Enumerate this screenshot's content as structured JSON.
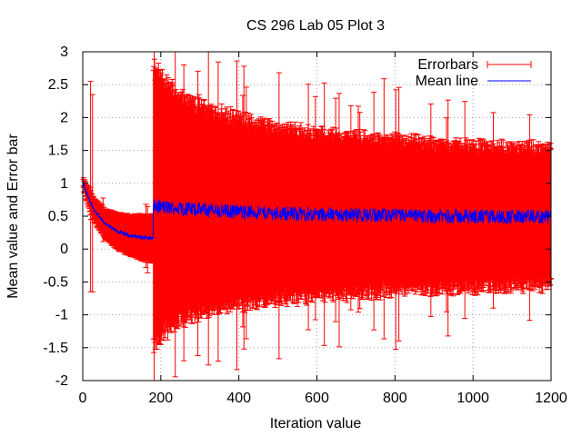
{
  "chart_data": {
    "type": "errorbar-line",
    "title": "CS 296 Lab 05 Plot 3",
    "xlabel": "Iteration value",
    "ylabel": "Mean value and Error bar",
    "xlim": [
      0,
      1200
    ],
    "ylim": [
      -2,
      3
    ],
    "x_ticks": [
      "0",
      "200",
      "400",
      "600",
      "800",
      "1000",
      "1200"
    ],
    "y_ticks": [
      "-2",
      "-1.5",
      "-1",
      "-0.5",
      "0",
      "0.5",
      "1",
      "1.5",
      "2",
      "2.5",
      "3"
    ],
    "grid": true,
    "legend_position": "top-right",
    "series": [
      {
        "name": "Errorbars",
        "kind": "errorbars",
        "color": "#ff0000",
        "segments": [
          {
            "x_start": 1,
            "x_end": 180,
            "mean_start": 1.0,
            "mean_end": 0.15,
            "half_width_start": 0.05,
            "half_width_end": 0.35
          },
          {
            "x_start": 181,
            "x_end": 1200,
            "mean_start": 0.65,
            "mean_end": 0.48,
            "half_width_start": 2.1,
            "half_width_end": 0.6
          }
        ],
        "sample_points": [
          {
            "x": 20,
            "mean": 0.95,
            "err": 1.6
          },
          {
            "x": 25,
            "mean": 0.85,
            "err": 1.5
          },
          {
            "x": 180,
            "mean": 0.65,
            "err": 2.1
          },
          {
            "x": 300,
            "mean": 0.6,
            "err": 1.6
          },
          {
            "x": 600,
            "mean": 0.52,
            "err": 0.9
          },
          {
            "x": 1000,
            "mean": 0.48,
            "err": 0.65
          },
          {
            "x": 1200,
            "mean": 0.48,
            "err": 0.6
          }
        ]
      },
      {
        "name": "Mean line",
        "kind": "line",
        "color": "#0000ff",
        "sample_points": [
          {
            "x": 0,
            "y": 1.05
          },
          {
            "x": 50,
            "y": 0.45
          },
          {
            "x": 100,
            "y": 0.25
          },
          {
            "x": 180,
            "y": 0.15
          },
          {
            "x": 181,
            "y": 0.6
          },
          {
            "x": 300,
            "y": 0.6
          },
          {
            "x": 600,
            "y": 0.5
          },
          {
            "x": 1000,
            "y": 0.48
          },
          {
            "x": 1200,
            "y": 0.48
          }
        ]
      }
    ]
  },
  "legend": {
    "errorbars_label": "Errorbars",
    "mean_label": "Mean line"
  }
}
